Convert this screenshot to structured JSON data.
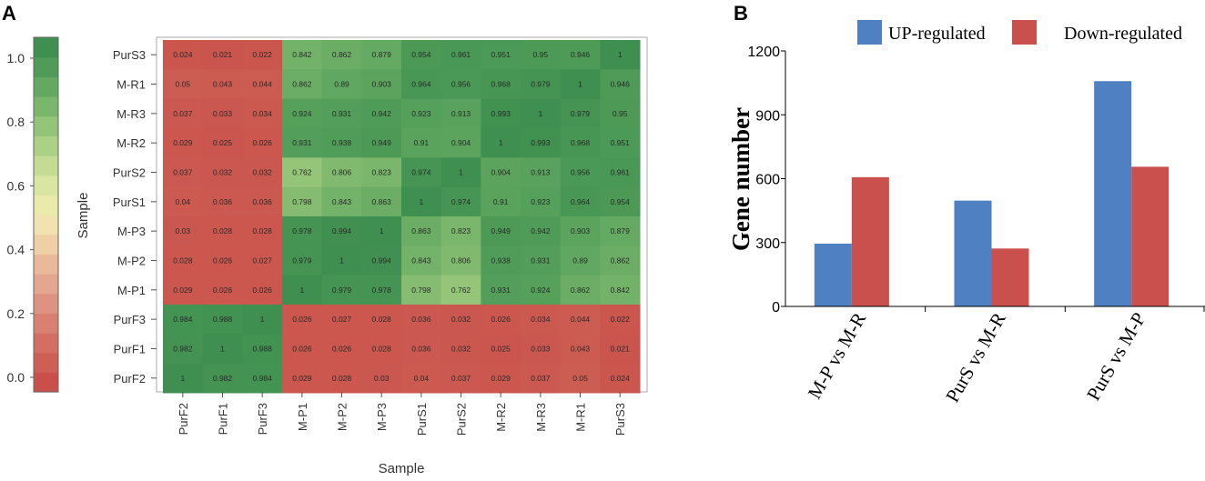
{
  "panels": {
    "a_label": "A",
    "b_label": "B"
  },
  "chart_data": [
    {
      "type": "heatmap",
      "title": "",
      "xlabel": "Sample",
      "ylabel": "Sample",
      "x_categories": [
        "PurF2",
        "PurF1",
        "PurF3",
        "M-P1",
        "M-P2",
        "M-P3",
        "PurS1",
        "PurS2",
        "M-R2",
        "M-R3",
        "M-R1",
        "PurS3"
      ],
      "y_categories": [
        "PurS3",
        "M-R1",
        "M-R3",
        "M-R2",
        "PurS2",
        "PurS1",
        "M-P3",
        "M-P2",
        "M-P1",
        "PurF3",
        "PurF1",
        "PurF2"
      ],
      "values": [
        [
          "0.024",
          "0.021",
          "0.022",
          "0.842",
          "0.862",
          "0.879",
          "0.954",
          "0.961",
          "0.951",
          "0.95",
          "0.946",
          "1"
        ],
        [
          "0.05",
          "0.043",
          "0.044",
          "0.862",
          "0.89",
          "0.903",
          "0.964",
          "0.956",
          "0.968",
          "0.979",
          "1",
          "0.946"
        ],
        [
          "0.037",
          "0.033",
          "0.034",
          "0.924",
          "0.931",
          "0.942",
          "0.923",
          "0.913",
          "0.993",
          "1",
          "0.979",
          "0.95"
        ],
        [
          "0.029",
          "0.025",
          "0.026",
          "0.931",
          "0.938",
          "0.949",
          "0.91",
          "0.904",
          "1",
          "0.993",
          "0.968",
          "0.951"
        ],
        [
          "0.037",
          "0.032",
          "0.032",
          "0.762",
          "0.806",
          "0.823",
          "0.974",
          "1",
          "0.904",
          "0.913",
          "0.956",
          "0.961"
        ],
        [
          "0.04",
          "0.036",
          "0.036",
          "0.798",
          "0.843",
          "0.863",
          "1",
          "0.974",
          "0.91",
          "0.923",
          "0.964",
          "0.954"
        ],
        [
          "0.03",
          "0.028",
          "0.028",
          "0.978",
          "0.994",
          "1",
          "0.863",
          "0.823",
          "0.949",
          "0.942",
          "0.903",
          "0.879"
        ],
        [
          "0.028",
          "0.026",
          "0.027",
          "0.979",
          "1",
          "0.994",
          "0.843",
          "0.806",
          "0.938",
          "0.931",
          "0.89",
          "0.862"
        ],
        [
          "0.029",
          "0.026",
          "0.026",
          "1",
          "0.979",
          "0.978",
          "0.798",
          "0.762",
          "0.931",
          "0.924",
          "0.862",
          "0.842"
        ],
        [
          "0.984",
          "0.988",
          "1",
          "0.026",
          "0.027",
          "0.028",
          "0.036",
          "0.032",
          "0.026",
          "0.034",
          "0.044",
          "0.022"
        ],
        [
          "0.982",
          "1",
          "0.988",
          "0.026",
          "0.026",
          "0.028",
          "0.036",
          "0.032",
          "0.025",
          "0.033",
          "0.043",
          "0.021"
        ],
        [
          "1",
          "0.982",
          "0.984",
          "0.029",
          "0.028",
          "0.03",
          "0.04",
          "0.037",
          "0.029",
          "0.037",
          "0.05",
          "0.024"
        ]
      ],
      "colorbar": {
        "range": [
          0,
          1
        ],
        "ticks": [
          "0.0",
          "0.2",
          "0.4",
          "0.6",
          "0.8",
          "1.0"
        ],
        "colors": [
          "#c9504a",
          "#cd5f55",
          "#d26f62",
          "#d88170",
          "#dd9380",
          "#e3a68f",
          "#e9b99a",
          "#efcfa6",
          "#f2e2b0",
          "#eaeba9",
          "#d9e6a0",
          "#c4dc92",
          "#acd084",
          "#93c477",
          "#7ab66c",
          "#63a962",
          "#4f9c58",
          "#3f8f50"
        ]
      }
    },
    {
      "type": "bar",
      "title": "",
      "xlabel": "",
      "ylabel": "Gene number",
      "categories": [
        "M-P vs M-R",
        "PurS vs M-R",
        "PurS vs M-P"
      ],
      "series": [
        {
          "name": "UP-regulated",
          "color": "#4f80c2",
          "values": [
            295,
            497,
            1058
          ]
        },
        {
          "name": "Down-regulated",
          "color": "#c9504d",
          "values": [
            607,
            272,
            656
          ]
        }
      ],
      "ylim": [
        0,
        1200
      ],
      "yticks": [
        "0",
        "300",
        "600",
        "900",
        "1200"
      ],
      "legend": "top"
    }
  ]
}
